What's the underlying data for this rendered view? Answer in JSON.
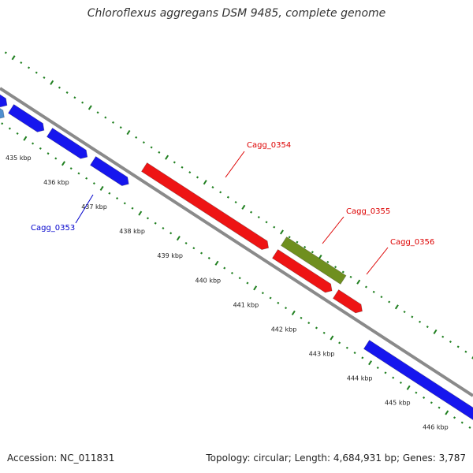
{
  "title": "Chloroflexus aggregans DSM 9485, complete genome",
  "accession": "Accession: NC_011831",
  "summary": "Topology: circular; Length: 4,684,931 bp; Genes: 3,787",
  "colors": {
    "backbone": "#8a8a8a",
    "tick": "#1f7f1f",
    "gene_blue": "#1616ee",
    "gene_lightblue": "#4f8fcf",
    "gene_red": "#ee1414",
    "gene_olive": "#6f8f1f",
    "label_red": "#dd0000",
    "label_blue": "#0000cc"
  },
  "scale": {
    "labels": [
      "435 kbp",
      "436 kbp",
      "437 kbp",
      "438 kbp",
      "439 kbp",
      "440 kbp",
      "441 kbp",
      "442 kbp",
      "443 kbp",
      "444 kbp",
      "445 kbp",
      "446 kbp"
    ]
  },
  "gene_labels": [
    {
      "name": "Cagg_0354",
      "color": "red"
    },
    {
      "name": "Cagg_0355",
      "color": "red"
    },
    {
      "name": "Cagg_0356",
      "color": "red"
    },
    {
      "name": "Cagg_0353",
      "color": "blue"
    }
  ]
}
